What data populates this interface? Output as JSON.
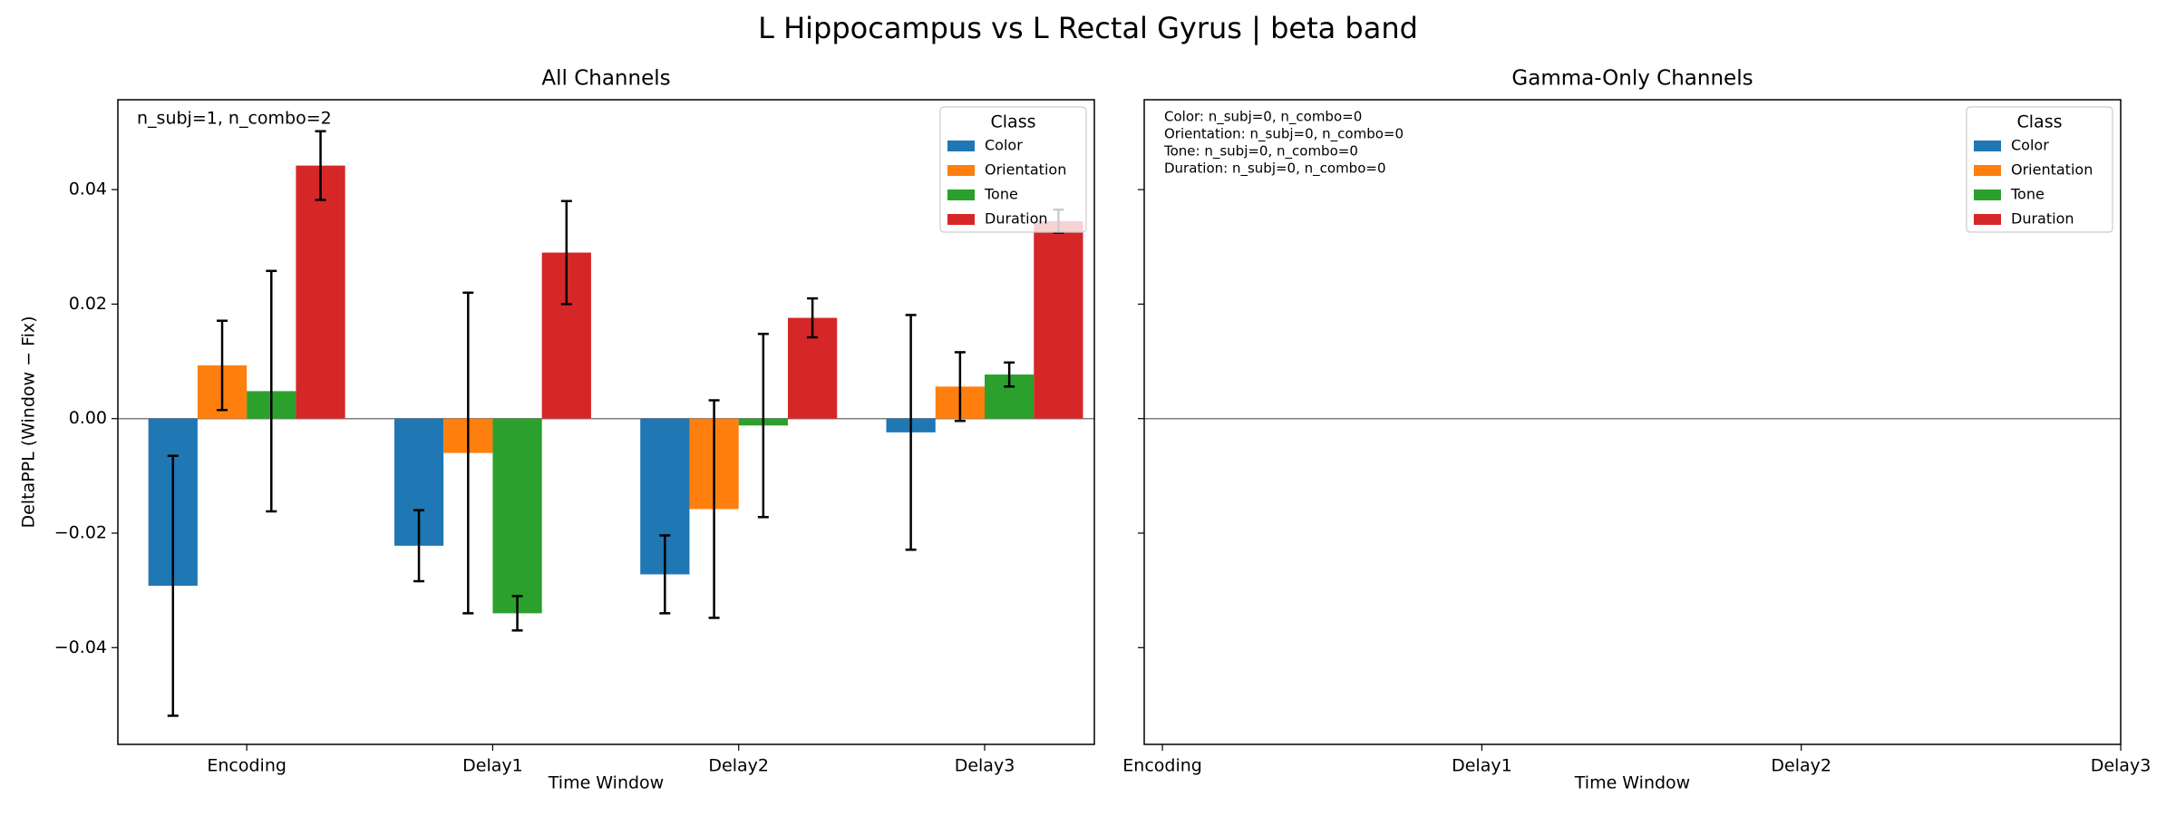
{
  "title": "L Hippocampus vs L Rectal Gyrus  |  beta band",
  "chart_data": [
    {
      "type": "bar",
      "title": "All Channels",
      "x_label": "Time Window",
      "y_label": "DeltaPPL (Window − Fix)",
      "annotation": [
        "n_subj=1, n_combo=2"
      ],
      "categories": [
        "Encoding",
        "Delay1",
        "Delay2",
        "Delay3"
      ],
      "legend_title": "Class",
      "legend": "upper right",
      "ylim": [
        -0.0569,
        0.0557
      ],
      "yticks": [
        {
          "value": -0.04,
          "label": "−0.04"
        },
        {
          "value": -0.02,
          "label": "−0.02"
        },
        {
          "value": 0,
          "label": "0.00"
        },
        0.02,
        0.04
      ],
      "series": [
        {
          "name": "Color",
          "color": "#1f77b4",
          "values": [
            -0.0292,
            -0.0222,
            -0.0272,
            -0.0024
          ],
          "errors": [
            0.0227,
            0.0062,
            0.0068,
            0.0205
          ]
        },
        {
          "name": "Orientation",
          "color": "#ff7f0e",
          "values": [
            0.0093,
            -0.006,
            -0.0158,
            0.0056
          ],
          "errors": [
            0.0078,
            0.028,
            0.019,
            0.006
          ]
        },
        {
          "name": "Tone",
          "color": "#2ca02c",
          "values": [
            0.0048,
            -0.034,
            -0.0012,
            0.0077
          ],
          "errors": [
            0.021,
            0.003,
            0.016,
            0.0021
          ]
        },
        {
          "name": "Duration",
          "color": "#d62728",
          "values": [
            0.0442,
            0.029,
            0.0176,
            0.0345
          ],
          "errors": [
            0.006,
            0.009,
            0.0034,
            0.002
          ]
        }
      ]
    },
    {
      "type": "bar",
      "title": "Gamma-Only Channels",
      "x_label": "Time Window",
      "annotation": [
        "Color: n_subj=0, n_combo=0",
        "Orientation: n_subj=0, n_combo=0",
        "Tone: n_subj=0, n_combo=0",
        "Duration: n_subj=0, n_combo=0"
      ],
      "categories": [
        "Encoding",
        "Delay1",
        "Delay2",
        "Delay3"
      ],
      "legend_title": "Class",
      "legend": "upper right",
      "ylim": [
        -0.0569,
        0.0557
      ],
      "yticks": [
        -0.04,
        -0.02,
        0,
        0.02,
        0.04
      ],
      "series": [
        {
          "name": "Color",
          "color": "#1f77b4"
        },
        {
          "name": "Orientation",
          "color": "#ff7f0e"
        },
        {
          "name": "Tone",
          "color": "#2ca02c"
        },
        {
          "name": "Duration",
          "color": "#d62728"
        }
      ]
    }
  ]
}
